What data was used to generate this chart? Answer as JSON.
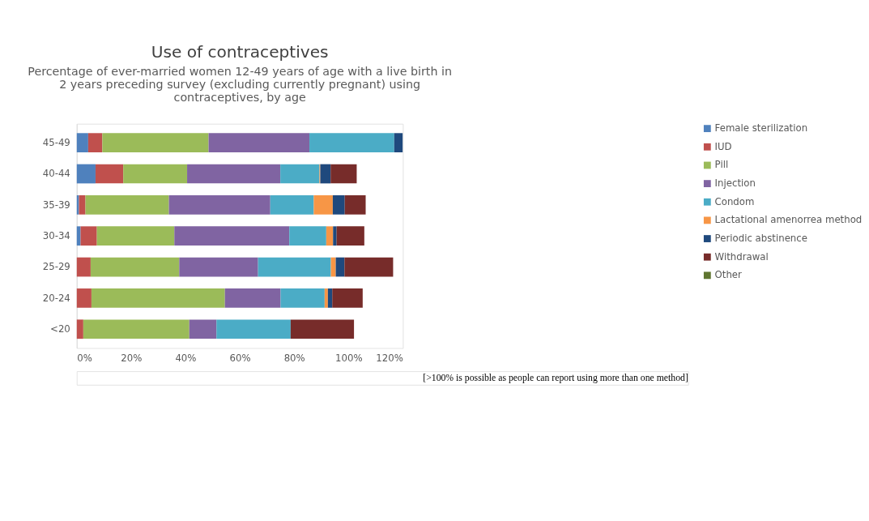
{
  "chart_data": {
    "type": "bar",
    "orientation": "horizontal",
    "stacked": true,
    "title": "Use of contraceptives",
    "subtitle": "Percentage of ever-married women 12-49 years of age with a live birth in 2 years preceding survey (excluding currently pregnant) using contraceptives, by age",
    "categories": [
      "45-49",
      "40-44",
      "35-39",
      "30-34",
      "25-29",
      "20-24",
      "<20"
    ],
    "series": [
      {
        "name": "Female sterilization",
        "color": "#4f81bd",
        "values": [
          4.2,
          6.9,
          0.8,
          1.4,
          0,
          0,
          0
        ]
      },
      {
        "name": "IUD",
        "color": "#c0504d",
        "values": [
          5.2,
          10.2,
          2.4,
          6.0,
          5.1,
          5.4,
          2.4
        ]
      },
      {
        "name": "Pill",
        "color": "#9bbb59",
        "values": [
          39.1,
          23.5,
          30.7,
          28.5,
          32.6,
          49.1,
          39.0
        ]
      },
      {
        "name": "Injection",
        "color": "#8064a2",
        "values": [
          37.1,
          34.3,
          37.3,
          42.3,
          29.0,
          20.5,
          10.0
        ]
      },
      {
        "name": "Condom",
        "color": "#4bacc6",
        "values": [
          31.2,
          14.4,
          16.0,
          13.6,
          26.8,
          16.2,
          27.3
        ]
      },
      {
        "name": "Lactational amenorrea method",
        "color": "#f79646",
        "values": [
          0,
          0.3,
          7.0,
          2.5,
          1.8,
          1.2,
          0
        ]
      },
      {
        "name": "Periodic abstinence",
        "color": "#1f497d",
        "values": [
          3.1,
          3.8,
          4.4,
          1.3,
          3.2,
          1.6,
          0
        ]
      },
      {
        "name": "Withdrawal",
        "color": "#772c2a",
        "values": [
          0,
          9.6,
          7.7,
          10.2,
          17.9,
          11.2,
          23.3
        ]
      },
      {
        "name": "Other",
        "color": "#5f7530",
        "values": [
          0,
          0,
          0,
          0,
          0,
          0,
          0
        ]
      }
    ],
    "xlim": [
      0,
      120
    ],
    "xticks": [
      {
        "value": 0,
        "label": "0%"
      },
      {
        "value": 20,
        "label": "20%"
      },
      {
        "value": 40,
        "label": "40%"
      },
      {
        "value": 60,
        "label": "60%"
      },
      {
        "value": 80,
        "label": "80%"
      },
      {
        "value": 100,
        "label": "100%"
      },
      {
        "value": 120,
        "label": "120%"
      }
    ],
    "grid": false,
    "legend": "right",
    "annotations": [
      "[>100% is possible as people can report using more than one method]"
    ]
  }
}
